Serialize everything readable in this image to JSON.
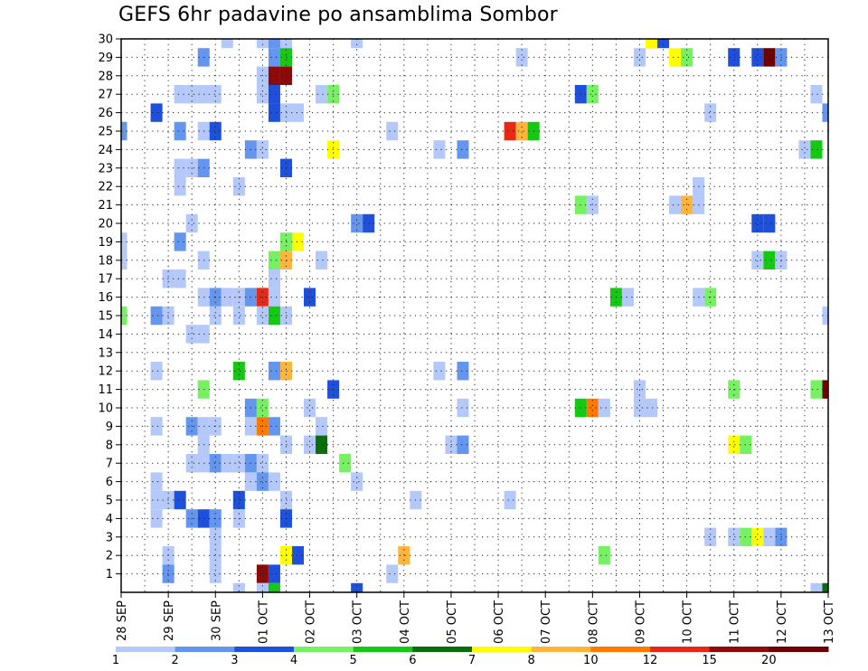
{
  "chart_data": {
    "type": "heatmap",
    "title": "GEFS 6hr padavine po ansamblima Sombor",
    "xlabel": "",
    "ylabel": "",
    "x_tick_labels": [
      "28 SEP",
      "29 SEP",
      "30 SEP",
      "01 OCT",
      "02 OCT",
      "03 OCT",
      "04 OCT",
      "05 OCT",
      "06 OCT",
      "07 OCT",
      "08 OCT",
      "09 OCT",
      "10 OCT",
      "11 OCT",
      "12 OCT",
      "13 OCT"
    ],
    "x_unit": "6-hour step from 28 SEP",
    "xlim": [
      0,
      60
    ],
    "y_tick_labels": [
      "1",
      "2",
      "3",
      "4",
      "5",
      "6",
      "7",
      "8",
      "9",
      "10",
      "11",
      "12",
      "13",
      "14",
      "15",
      "16",
      "17",
      "18",
      "19",
      "20",
      "21",
      "22",
      "23",
      "24",
      "25",
      "26",
      "27",
      "28",
      "29",
      "30"
    ],
    "ylim": [
      0,
      30
    ],
    "grid": true,
    "colorbar": {
      "colors": [
        "#b4c8fa",
        "#6496f0",
        "#1e50dc",
        "#78f064",
        "#14c814",
        "#0a6e0a",
        "#ffff00",
        "#ffb43c",
        "#ff7800",
        "#e62814",
        "#8c0a0a",
        "#6e0000"
      ],
      "labels": [
        "1",
        "2",
        "3",
        "4",
        "5",
        "6",
        "7",
        "8",
        "10",
        "12",
        "15",
        "20"
      ],
      "placement": "bottom"
    },
    "cells": [
      [
        30,
        9,
        1
      ],
      [
        30,
        12,
        1
      ],
      [
        30,
        13,
        2
      ],
      [
        30,
        14,
        1
      ],
      [
        30,
        20,
        1
      ],
      [
        30,
        45,
        7
      ],
      [
        30,
        46,
        3
      ],
      [
        29,
        7,
        2
      ],
      [
        29,
        13,
        2
      ],
      [
        29,
        14,
        5
      ],
      [
        29,
        34,
        1
      ],
      [
        29,
        44,
        1
      ],
      [
        29,
        47,
        7
      ],
      [
        29,
        48,
        4
      ],
      [
        29,
        52,
        3
      ],
      [
        29,
        54,
        3
      ],
      [
        29,
        55,
        12
      ],
      [
        29,
        56,
        2
      ],
      [
        28,
        12,
        1
      ],
      [
        28,
        13,
        11
      ],
      [
        28,
        14,
        11
      ],
      [
        27,
        5,
        1
      ],
      [
        27,
        6,
        1
      ],
      [
        27,
        7,
        1
      ],
      [
        27,
        8,
        1
      ],
      [
        27,
        12,
        1
      ],
      [
        27,
        13,
        3
      ],
      [
        27,
        17,
        1
      ],
      [
        27,
        18,
        4
      ],
      [
        27,
        39,
        3
      ],
      [
        27,
        40,
        4
      ],
      [
        27,
        59,
        1
      ],
      [
        26,
        3,
        3
      ],
      [
        26,
        13,
        3
      ],
      [
        26,
        14,
        1
      ],
      [
        26,
        15,
        1
      ],
      [
        26,
        50,
        1
      ],
      [
        26,
        60,
        2
      ],
      [
        25,
        0,
        2
      ],
      [
        25,
        5,
        2
      ],
      [
        25,
        7,
        1
      ],
      [
        25,
        8,
        3
      ],
      [
        25,
        23,
        1
      ],
      [
        25,
        33,
        10
      ],
      [
        25,
        34,
        8
      ],
      [
        25,
        35,
        5
      ],
      [
        24,
        11,
        2
      ],
      [
        24,
        12,
        1
      ],
      [
        24,
        18,
        7
      ],
      [
        24,
        27,
        1
      ],
      [
        24,
        29,
        2
      ],
      [
        24,
        58,
        1
      ],
      [
        24,
        59,
        5
      ],
      [
        23,
        5,
        1
      ],
      [
        23,
        6,
        1
      ],
      [
        23,
        7,
        2
      ],
      [
        23,
        14,
        3
      ],
      [
        22,
        5,
        1
      ],
      [
        22,
        10,
        1
      ],
      [
        22,
        49,
        1
      ],
      [
        21,
        39,
        4
      ],
      [
        21,
        40,
        1
      ],
      [
        21,
        47,
        1
      ],
      [
        21,
        48,
        8
      ],
      [
        21,
        49,
        1
      ],
      [
        20,
        6,
        1
      ],
      [
        20,
        20,
        2
      ],
      [
        20,
        21,
        3
      ],
      [
        20,
        54,
        3
      ],
      [
        20,
        55,
        3
      ],
      [
        19,
        0,
        1
      ],
      [
        19,
        5,
        2
      ],
      [
        19,
        14,
        4
      ],
      [
        19,
        15,
        7
      ],
      [
        18,
        0,
        1
      ],
      [
        18,
        7,
        1
      ],
      [
        18,
        13,
        4
      ],
      [
        18,
        14,
        8
      ],
      [
        18,
        17,
        1
      ],
      [
        18,
        54,
        1
      ],
      [
        18,
        55,
        5
      ],
      [
        18,
        56,
        1
      ],
      [
        17,
        4,
        1
      ],
      [
        17,
        5,
        1
      ],
      [
        17,
        13,
        1
      ],
      [
        16,
        7,
        1
      ],
      [
        16,
        8,
        2
      ],
      [
        16,
        9,
        1
      ],
      [
        16,
        10,
        1
      ],
      [
        16,
        11,
        2
      ],
      [
        16,
        12,
        10
      ],
      [
        16,
        13,
        1
      ],
      [
        16,
        16,
        3
      ],
      [
        16,
        42,
        5
      ],
      [
        16,
        43,
        1
      ],
      [
        16,
        49,
        1
      ],
      [
        16,
        50,
        4
      ],
      [
        15,
        0,
        4
      ],
      [
        15,
        3,
        2
      ],
      [
        15,
        4,
        1
      ],
      [
        15,
        8,
        1
      ],
      [
        15,
        10,
        1
      ],
      [
        15,
        12,
        1
      ],
      [
        15,
        13,
        5
      ],
      [
        15,
        14,
        1
      ],
      [
        15,
        60,
        1
      ],
      [
        14,
        6,
        1
      ],
      [
        14,
        7,
        1
      ],
      [
        12,
        3,
        1
      ],
      [
        12,
        10,
        5
      ],
      [
        12,
        13,
        2
      ],
      [
        12,
        14,
        8
      ],
      [
        12,
        27,
        1
      ],
      [
        12,
        29,
        2
      ],
      [
        11,
        7,
        4
      ],
      [
        11,
        18,
        3
      ],
      [
        11,
        44,
        1
      ],
      [
        11,
        52,
        4
      ],
      [
        11,
        59,
        4
      ],
      [
        11,
        60,
        12
      ],
      [
        10,
        11,
        2
      ],
      [
        10,
        12,
        4
      ],
      [
        10,
        16,
        1
      ],
      [
        10,
        29,
        1
      ],
      [
        10,
        39,
        5
      ],
      [
        10,
        40,
        9
      ],
      [
        10,
        41,
        1
      ],
      [
        10,
        44,
        1
      ],
      [
        10,
        45,
        1
      ],
      [
        9,
        3,
        1
      ],
      [
        9,
        6,
        2
      ],
      [
        9,
        7,
        1
      ],
      [
        9,
        8,
        1
      ],
      [
        9,
        11,
        1
      ],
      [
        9,
        12,
        9
      ],
      [
        9,
        13,
        2
      ],
      [
        9,
        17,
        1
      ],
      [
        8,
        7,
        1
      ],
      [
        8,
        14,
        1
      ],
      [
        8,
        16,
        1
      ],
      [
        8,
        17,
        6
      ],
      [
        8,
        28,
        1
      ],
      [
        8,
        29,
        2
      ],
      [
        8,
        52,
        7
      ],
      [
        8,
        53,
        4
      ],
      [
        7,
        6,
        1
      ],
      [
        7,
        7,
        1
      ],
      [
        7,
        8,
        2
      ],
      [
        7,
        9,
        1
      ],
      [
        7,
        10,
        1
      ],
      [
        7,
        11,
        2
      ],
      [
        7,
        12,
        1
      ],
      [
        7,
        19,
        4
      ],
      [
        6,
        3,
        1
      ],
      [
        6,
        11,
        1
      ],
      [
        6,
        12,
        2
      ],
      [
        6,
        13,
        1
      ],
      [
        6,
        20,
        1
      ],
      [
        5,
        3,
        1
      ],
      [
        5,
        4,
        1
      ],
      [
        5,
        5,
        3
      ],
      [
        5,
        10,
        3
      ],
      [
        5,
        14,
        1
      ],
      [
        5,
        25,
        1
      ],
      [
        5,
        33,
        1
      ],
      [
        4,
        3,
        1
      ],
      [
        4,
        6,
        2
      ],
      [
        4,
        7,
        3
      ],
      [
        4,
        8,
        2
      ],
      [
        4,
        10,
        1
      ],
      [
        4,
        14,
        3
      ],
      [
        3,
        8,
        1
      ],
      [
        3,
        50,
        1
      ],
      [
        3,
        52,
        1
      ],
      [
        3,
        53,
        4
      ],
      [
        3,
        54,
        7
      ],
      [
        3,
        55,
        1
      ],
      [
        3,
        56,
        2
      ],
      [
        2,
        4,
        1
      ],
      [
        2,
        8,
        1
      ],
      [
        2,
        14,
        7
      ],
      [
        2,
        15,
        3
      ],
      [
        2,
        24,
        8
      ],
      [
        2,
        41,
        4
      ],
      [
        1,
        4,
        2
      ],
      [
        1,
        8,
        1
      ],
      [
        1,
        12,
        11
      ],
      [
        1,
        13,
        3
      ],
      [
        1,
        23,
        1
      ],
      [
        0,
        10,
        1
      ],
      [
        0,
        12,
        1
      ],
      [
        0,
        13,
        5
      ],
      [
        0,
        20,
        3
      ],
      [
        0,
        59,
        1
      ],
      [
        0,
        60,
        6
      ]
    ]
  }
}
